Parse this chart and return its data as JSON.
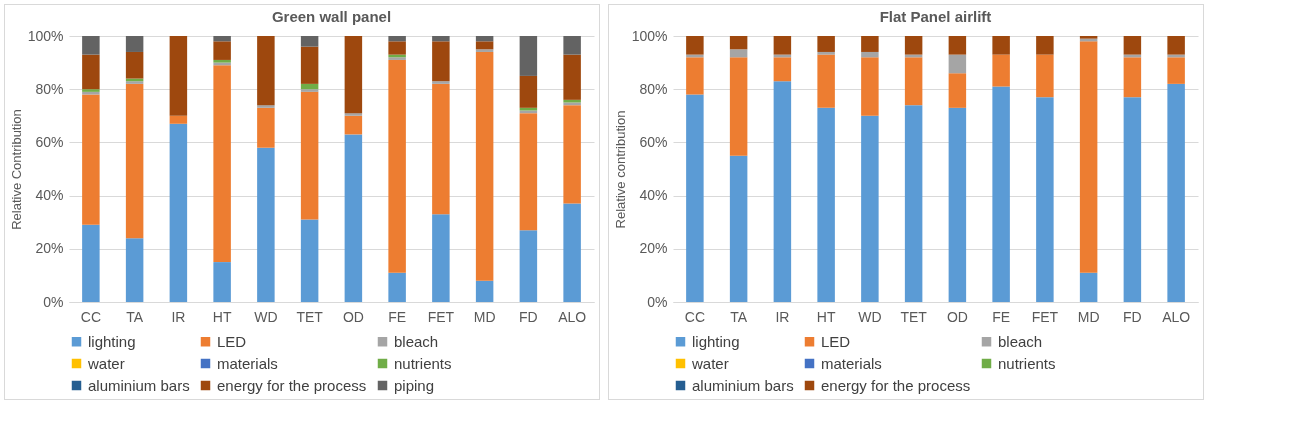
{
  "chart_data": [
    {
      "type": "bar",
      "title": "Green wall panel",
      "ylabel": "Relative Contribution",
      "stacked": true,
      "grid": "y",
      "legend": "bottom",
      "categories": [
        "CC",
        "TA",
        "IR",
        "HT",
        "WD",
        "TET",
        "OD",
        "FE",
        "FET",
        "MD",
        "FD",
        "ALO"
      ],
      "ylim": [
        0,
        100
      ],
      "yticks": [
        {
          "value": 0,
          "label": "0%"
        },
        {
          "value": 20,
          "label": "20%"
        },
        {
          "value": 40,
          "label": "40%"
        },
        {
          "value": 60,
          "label": "60%"
        },
        {
          "value": 80,
          "label": "80%"
        },
        {
          "value": 100,
          "label": "100%"
        }
      ],
      "series": [
        {
          "name": "lighting",
          "color": "#5b9bd5",
          "values": [
            29,
            24,
            67,
            15,
            58,
            31,
            63,
            11,
            33,
            8,
            27,
            37
          ]
        },
        {
          "name": "LED",
          "color": "#ed7d31",
          "values": [
            49,
            58,
            3,
            74,
            15,
            48,
            7,
            80,
            49,
            86,
            44,
            37
          ]
        },
        {
          "name": "bleach",
          "color": "#a5a5a5",
          "values": [
            1,
            1,
            0,
            1,
            1,
            1,
            1,
            1,
            1,
            1,
            1,
            1
          ]
        },
        {
          "name": "water",
          "color": "#ffc000",
          "values": [
            0,
            0,
            0,
            0,
            0,
            0,
            0,
            0,
            0,
            0,
            0,
            0
          ]
        },
        {
          "name": "materials",
          "color": "#4472c4",
          "values": [
            0,
            0,
            0,
            0,
            0,
            0,
            0,
            0,
            0,
            0,
            0,
            0
          ]
        },
        {
          "name": "nutrients",
          "color": "#70ad47",
          "values": [
            1,
            1,
            0,
            1,
            0,
            2,
            0,
            1,
            0,
            0,
            1,
            1
          ]
        },
        {
          "name": "aluminium bars",
          "color": "#255e91",
          "values": [
            0,
            0,
            0,
            0,
            0,
            0,
            0,
            0,
            0,
            0,
            0,
            0
          ]
        },
        {
          "name": "energy for the process",
          "color": "#9e480e",
          "values": [
            13,
            10,
            30,
            7,
            26,
            14,
            29,
            5,
            15,
            3,
            12,
            17
          ]
        },
        {
          "name": "piping",
          "color": "#636363",
          "values": [
            7,
            6,
            0,
            2,
            0,
            4,
            0,
            2,
            2,
            2,
            15,
            7
          ]
        }
      ]
    },
    {
      "type": "bar",
      "title": "Flat Panel airlift",
      "ylabel": "Relative contribution",
      "stacked": true,
      "grid": "y",
      "legend": "bottom",
      "categories": [
        "CC",
        "TA",
        "IR",
        "HT",
        "WD",
        "TET",
        "OD",
        "FE",
        "FET",
        "MD",
        "FD",
        "ALO"
      ],
      "ylim": [
        0,
        100
      ],
      "yticks": [
        {
          "value": 0,
          "label": "0%"
        },
        {
          "value": 20,
          "label": "20%"
        },
        {
          "value": 40,
          "label": "40%"
        },
        {
          "value": 60,
          "label": "60%"
        },
        {
          "value": 80,
          "label": "80%"
        },
        {
          "value": 100,
          "label": "100%"
        }
      ],
      "series": [
        {
          "name": "lighting",
          "color": "#5b9bd5",
          "values": [
            78,
            55,
            83,
            73,
            70,
            74,
            73,
            81,
            77,
            11,
            77,
            82
          ]
        },
        {
          "name": "LED",
          "color": "#ed7d31",
          "values": [
            14,
            37,
            9,
            20,
            22,
            18,
            13,
            12,
            16,
            87,
            15,
            10
          ]
        },
        {
          "name": "bleach",
          "color": "#a5a5a5",
          "values": [
            1,
            3,
            1,
            1,
            2,
            1,
            7,
            0,
            0,
            1,
            1,
            1
          ]
        },
        {
          "name": "water",
          "color": "#ffc000",
          "values": [
            0,
            0,
            0,
            0,
            0,
            0,
            0,
            0,
            0,
            0,
            0,
            0
          ]
        },
        {
          "name": "materials",
          "color": "#4472c4",
          "values": [
            0,
            0,
            0,
            0,
            0,
            0,
            0,
            0,
            0,
            0,
            0,
            0
          ]
        },
        {
          "name": "nutrients",
          "color": "#70ad47",
          "values": [
            0,
            0,
            0,
            0,
            0,
            0,
            0,
            0,
            0,
            0,
            0,
            0
          ]
        },
        {
          "name": "aluminium bars",
          "color": "#255e91",
          "values": [
            0,
            0,
            0,
            0,
            0,
            0,
            0,
            0,
            0,
            0,
            0,
            0
          ]
        },
        {
          "name": "energy for the process",
          "color": "#9e480e",
          "values": [
            7,
            5,
            7,
            6,
            6,
            7,
            7,
            7,
            7,
            1,
            7,
            7
          ]
        }
      ]
    }
  ]
}
